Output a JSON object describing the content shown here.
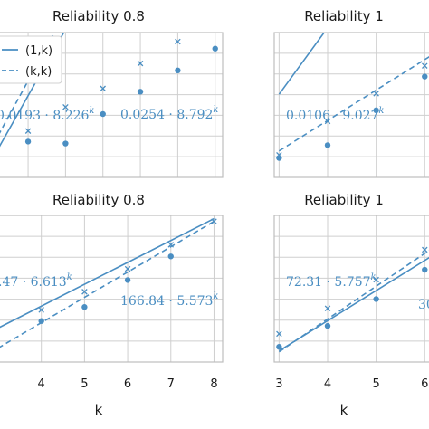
{
  "colors": {
    "series": "#4a8ec2",
    "grid": "#cfcfcf",
    "axis": "#bdbdbd",
    "text": "#1a1a1a"
  },
  "chart_data": [
    {
      "type": "line",
      "title": "Reliability 0.8",
      "xlabel": "",
      "xlim": [
        2.2,
        8.2
      ],
      "ylog": true,
      "grid": true,
      "legend": {
        "placement": "top-left",
        "entries": [
          "(1,k)",
          "(k,k)"
        ]
      },
      "series": [
        {
          "name": "(1,k)",
          "kind": "points",
          "marker": "dot",
          "x": [
            3,
            4,
            5,
            6,
            7,
            8
          ],
          "y": [
            2.5,
            2.35,
            6.0,
            12.2,
            24.0,
            48.0
          ]
        },
        {
          "name": "(k,k)",
          "kind": "points",
          "marker": "x",
          "x": [
            3,
            4,
            5,
            6,
            7,
            8
          ],
          "y": [
            3.5,
            7.5,
            13.5,
            30.0,
            60.0,
            120.0
          ]
        },
        {
          "name": "(1,k)",
          "kind": "fit",
          "style": "solid",
          "coef": 0.0193,
          "base": 8.226,
          "x": [
            2.2,
            8.0
          ]
        },
        {
          "name": "(k,k)",
          "kind": "fit",
          "style": "dashed",
          "coef": 0.0254,
          "base": 8.792,
          "x": [
            2.2,
            8.0
          ]
        }
      ],
      "annotations": [
        {
          "text": "0.0193 · 8.226",
          "sup": "k"
        },
        {
          "text": "0.0254 · 8.792",
          "sup": "k"
        }
      ]
    },
    {
      "type": "line",
      "title": "Reliability 1",
      "xlabel": "",
      "xlim": [
        2.9,
        6.2
      ],
      "ylog": true,
      "grid": true,
      "series": [
        {
          "name": "(1,k)",
          "kind": "points",
          "marker": "dot",
          "x": [
            3,
            4,
            5,
            6
          ],
          "y": [
            0.95,
            1.45,
            4.6,
            14.0
          ]
        },
        {
          "name": "(k,k)",
          "kind": "points",
          "marker": "x",
          "x": [
            3,
            4,
            5,
            6
          ],
          "y": [
            1.05,
            3.2,
            8.0,
            20.0
          ]
        },
        {
          "name": "(1,k)",
          "kind": "fit",
          "style": "solid",
          "coef": 0.0106,
          "base": 9.027,
          "x": [
            3.0,
            6.2
          ]
        },
        {
          "name": "(k,k)",
          "kind": "fit",
          "style": "dashed",
          "x": [
            3.0,
            6.2
          ],
          "y": [
            1.2,
            30.0
          ]
        }
      ],
      "annotations": [
        {
          "text": "0.0106 · 9.027",
          "sup": "k"
        }
      ]
    },
    {
      "type": "line",
      "title": "Reliability 0.8",
      "xlabel": "k",
      "xlim": [
        3.0,
        8.2
      ],
      "xticks": [
        4,
        5,
        6,
        7,
        8
      ],
      "ylog": true,
      "grid": true,
      "series": [
        {
          "name": "(1,k)",
          "kind": "points",
          "marker": "dot",
          "x": [
            4,
            5,
            6,
            7
          ],
          "y": [
            50000,
            150000,
            1250000,
            8000000
          ]
        },
        {
          "name": "(k,k)",
          "kind": "points",
          "marker": "x",
          "x": [
            4,
            5,
            6,
            7,
            8
          ],
          "y": [
            120000,
            500000,
            3000000,
            20000000,
            125000000
          ]
        },
        {
          "name": "(1,k)",
          "kind": "fit",
          "style": "solid",
          "coef": 166.84,
          "base": 5.573,
          "x": [
            3.0,
            8.0
          ]
        },
        {
          "name": "(k,k)",
          "kind": "fit",
          "style": "dashed",
          "x": [
            3.0,
            8.0
          ],
          "y": [
            6000,
            125000000
          ]
        }
      ],
      "annotations": [
        {
          "text": ".47 · 6.613",
          "sup": "k"
        },
        {
          "text": "166.84 · 5.573",
          "sup": "k"
        }
      ]
    },
    {
      "type": "line",
      "title": "Reliability 1",
      "xlabel": "k",
      "xlim": [
        2.9,
        6.2
      ],
      "xticks": [
        3,
        4,
        5,
        6
      ],
      "ylog": true,
      "grid": true,
      "series": [
        {
          "name": "(1,k)",
          "kind": "points",
          "marker": "dot",
          "x": [
            3,
            4,
            5,
            6
          ],
          "y": [
            18000,
            55000,
            230000,
            1100000
          ]
        },
        {
          "name": "(k,k)",
          "kind": "points",
          "marker": "x",
          "x": [
            3,
            4,
            5,
            6
          ],
          "y": [
            36000,
            140000,
            650000,
            3200000
          ]
        },
        {
          "name": "(1,k)",
          "kind": "fit",
          "style": "solid",
          "x": [
            3.0,
            6.2
          ],
          "y": [
            14500,
            2500000
          ]
        },
        {
          "name": "(k,k)",
          "kind": "fit",
          "style": "dashed",
          "coef": 72.31,
          "base": 5.757,
          "x": [
            3.0,
            6.2
          ]
        }
      ],
      "annotations": [
        {
          "text": "72.31 · 5.757",
          "sup": "k"
        },
        {
          "text": "30"
        }
      ]
    }
  ]
}
